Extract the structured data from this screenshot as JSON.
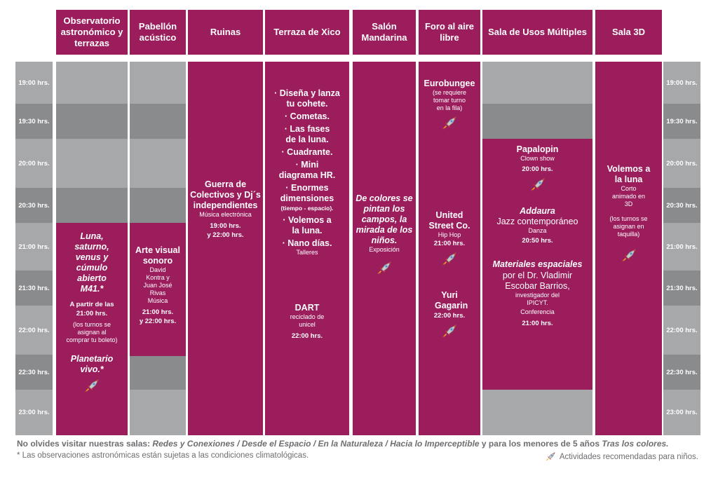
{
  "colors": {
    "magenta": "#9b1d5c",
    "gray_light": "#a7a8aa",
    "gray_dark": "#8a8b8d"
  },
  "headers": [
    "Observatorio astronómico y terrazas",
    "Pabellón acústico",
    "Ruinas",
    "Terraza de Xico",
    "Salón Mandarina",
    "Foro al aire libre",
    "Sala de Usos Múltiples",
    "Sala 3D"
  ],
  "times": [
    "19:00 hrs.",
    "19:30 hrs.",
    "20:00 hrs.",
    "20:30 hrs.",
    "21:00 hrs.",
    "21:30 hrs.",
    "22:00 hrs.",
    "22:30 hrs.",
    "23:00 hrs."
  ],
  "observatorio": {
    "title": "Luna, saturno, venus y cúmulo abierto M41.*",
    "time_label": "A partir de las",
    "time": "21:00 hrs.",
    "note": "(los turnos se asignan al comprar tu boleto)",
    "planetario": "Planetario vivo.*"
  },
  "pabellon": {
    "title": "Arte visual sonoro",
    "artists": "David Kontra y Juan José Rivas",
    "genre": "Música",
    "time1": "21:00 hrs.",
    "time2": "y 22:00 hrs."
  },
  "ruinas": {
    "title": "Guerra de Colectivos y Dj´s independientes",
    "genre": "Música electrónica",
    "time1": "19:00 hrs.",
    "time2": "y 22:00 hrs."
  },
  "xico": {
    "items": [
      "· Diseña y lanza tu cohete.",
      "· Cometas.",
      "· Las fases de la luna.",
      "· Cuadrante.",
      "· Mini diagrama HR.",
      "· Enormes dimensiones",
      "(tiempo - espacio).",
      "· Volemos a la luna.",
      "· Nano días."
    ],
    "talleres": "Talleres",
    "dart_title": "DART",
    "dart_desc": "reciclado de unicel",
    "dart_time": "22:00 hrs."
  },
  "mandarina": {
    "title": "De colores se pintan los campos, la mirada de los niños.",
    "type": "Exposición"
  },
  "foro": {
    "eurobungee": "Eurobungee",
    "eurobungee_note": "(se requiere tomar turno en la fila)",
    "usc_title": "United Street Co.",
    "usc_genre": "Hip Hop",
    "usc_time": "21:00 hrs.",
    "yuri_title": "Yuri Gagarin",
    "yuri_time": "22:00 hrs."
  },
  "usos": {
    "papalopin": "Papalopin",
    "papalopin_type": "Clown show",
    "papalopin_time": "20:00 hrs.",
    "addaura": "Addaura",
    "addaura_genre": "Jazz contemporáneo",
    "addaura_type": "Danza",
    "addaura_time": "20:50 hrs.",
    "materiales": "Materiales espaciales",
    "materiales_por": "por el Dr. Vladimir Escobar Barrios,",
    "materiales_role": "investigador del IPICYT.",
    "materiales_type": "Conferencia",
    "materiales_time": "21:00 hrs."
  },
  "sala3d": {
    "title": "Volemos a la luna",
    "type": "Corto animado en 3D",
    "note": "(los turnos se asignan en taquilla)"
  },
  "footer": {
    "line1_a": "No olvides visitar nuestras salas: ",
    "line1_rooms": "Redes y Conexiones / Desde el Espacio / En la Naturaleza / Hacia lo Imperceptible",
    "line1_b": " y para los menores de 5 años ",
    "line1_c": "Tras los colores.",
    "line2": "* Las observaciones astronómicas están sujetas a las condiciones climatológicas.",
    "legend": "Actividades recomendadas para niños."
  }
}
